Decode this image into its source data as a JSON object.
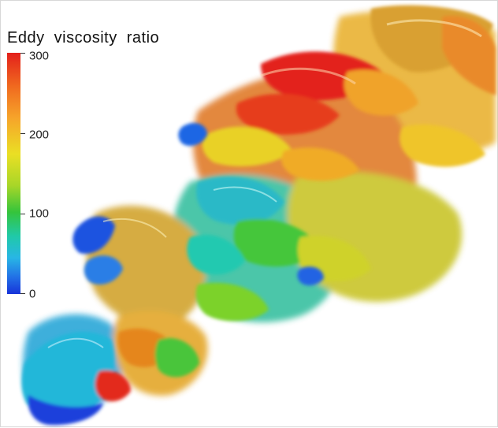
{
  "legend": {
    "title": "Eddy viscosity ratio",
    "colors": [
      "#e3201b",
      "#f6a42a",
      "#eadf24",
      "#35c43b",
      "#20c9a8",
      "#2270e6",
      "#1733d9"
    ],
    "ticks": [
      {
        "label": "300"
      },
      {
        "label": "200"
      },
      {
        "label": "100"
      },
      {
        "label": "0"
      }
    ]
  }
}
